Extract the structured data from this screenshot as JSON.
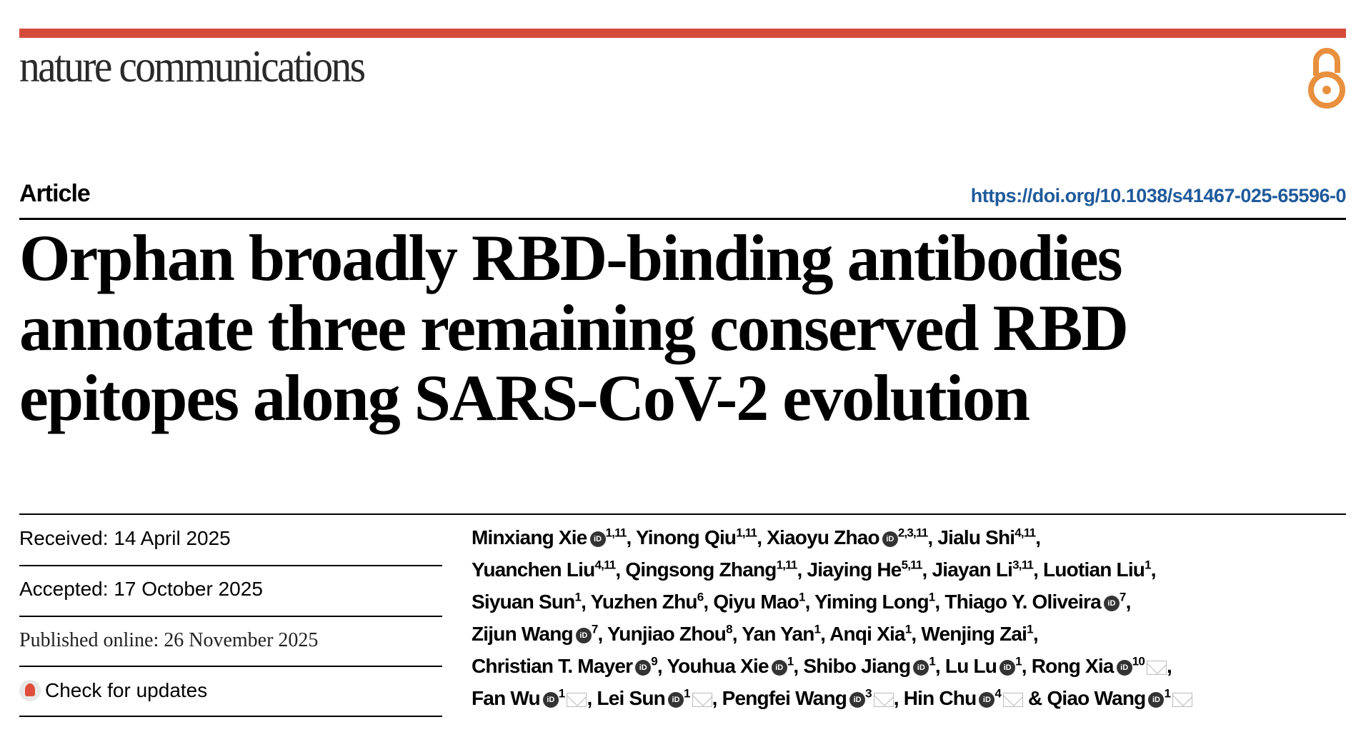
{
  "header": {
    "journal": "nature communications",
    "open_access_icon": "open-access-icon",
    "accent_color": "#d44b3b",
    "oa_color": "#e8903e"
  },
  "article_type": "Article",
  "doi": "https://doi.org/10.1038/s41467-025-65596-0",
  "title": "Orphan broadly RBD-binding antibodies annotate three remaining conserved RBD epitopes along SARS-CoV-2 evolution",
  "dates": {
    "received": "Received: 14 April 2025",
    "accepted": "Accepted: 17 October 2025",
    "published": "Published online: 26 November 2025"
  },
  "check_updates": "Check for updates",
  "orcid_label": "iD",
  "authors": [
    {
      "name": "Minxiang Xie",
      "orcid": true,
      "aff": "1,11"
    },
    {
      "name": "Yinong Qiu",
      "aff": "1,11"
    },
    {
      "name": "Xiaoyu Zhao",
      "orcid": true,
      "aff": "2,3,11"
    },
    {
      "name": "Jialu Shi",
      "aff": "4,11",
      "br": true
    },
    {
      "name": "Yuanchen Liu",
      "aff": "4,11"
    },
    {
      "name": "Qingsong Zhang",
      "aff": "1,11"
    },
    {
      "name": "Jiaying He",
      "aff": "5,11"
    },
    {
      "name": "Jiayan Li",
      "aff": "3,11"
    },
    {
      "name": "Luotian Liu",
      "aff": "1",
      "br": true
    },
    {
      "name": "Siyuan Sun",
      "aff": "1"
    },
    {
      "name": "Yuzhen Zhu",
      "aff": "6"
    },
    {
      "name": "Qiyu Mao",
      "aff": "1"
    },
    {
      "name": "Yiming Long",
      "aff": "1"
    },
    {
      "name": "Thiago Y. Oliveira",
      "orcid": true,
      "aff": "7",
      "br": true
    },
    {
      "name": "Zijun Wang",
      "orcid": true,
      "aff": "7"
    },
    {
      "name": "Yunjiao Zhou",
      "aff": "8"
    },
    {
      "name": "Yan Yan",
      "aff": "1"
    },
    {
      "name": "Anqi Xia",
      "aff": "1"
    },
    {
      "name": "Wenjing Zai",
      "aff": "1",
      "br": true
    },
    {
      "name": "Christian T. Mayer",
      "orcid": true,
      "aff": "9"
    },
    {
      "name": "Youhua Xie",
      "orcid": true,
      "aff": "1"
    },
    {
      "name": "Shibo Jiang",
      "orcid": true,
      "aff": "1"
    },
    {
      "name": "Lu Lu",
      "orcid": true,
      "aff": "1"
    },
    {
      "name": "Rong Xia",
      "orcid": true,
      "aff": "10",
      "email": true,
      "br": true
    },
    {
      "name": "Fan Wu",
      "orcid": true,
      "aff": "1",
      "email": true
    },
    {
      "name": "Lei Sun",
      "orcid": true,
      "aff": "1",
      "email": true
    },
    {
      "name": "Pengfei Wang",
      "orcid": true,
      "aff": "3",
      "email": true
    },
    {
      "name": "Hin Chu",
      "orcid": true,
      "aff": "4",
      "email": true
    },
    {
      "name": "Qiao Wang",
      "orcid": true,
      "aff": "1",
      "email": true
    }
  ]
}
